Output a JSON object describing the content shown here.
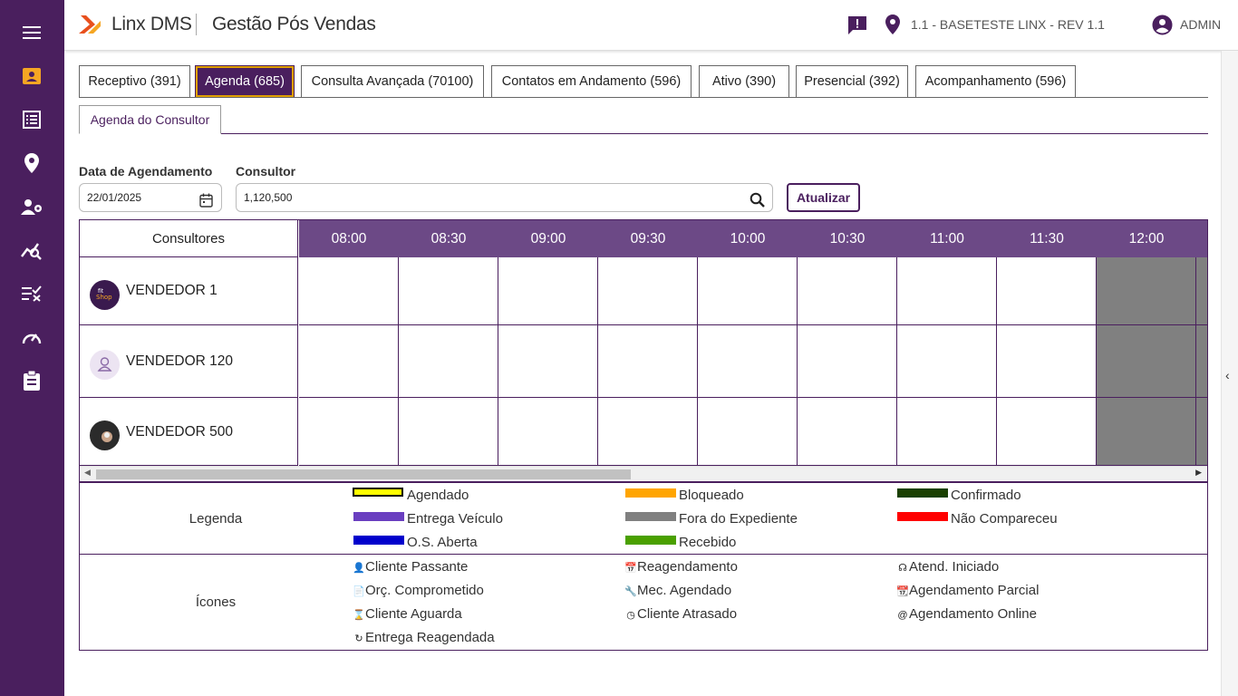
{
  "app": {
    "brand": "Linx DMS",
    "module": "Gestão Pós Vendas"
  },
  "header": {
    "company": "1.1 - BASETESTE LINX - REV 1.1",
    "user": "ADMIN"
  },
  "sidebar": {
    "icons": [
      "menu-icon",
      "contacts-icon",
      "list-icon",
      "location-icon",
      "users-gear-icon",
      "analytics-icon",
      "checklist-icon",
      "gauge-icon",
      "clipboard-icon"
    ]
  },
  "tabs": [
    {
      "label": "Receptivo (391)"
    },
    {
      "label": "Agenda (685)"
    },
    {
      "label": "Consulta Avançada (70100)"
    },
    {
      "label": "Contatos em Andamento (596)"
    },
    {
      "label": "Ativo (390)"
    },
    {
      "label": "Presencial (392)"
    },
    {
      "label": "Acompanhamento (596)"
    }
  ],
  "subtab": {
    "label": "Agenda do Consultor"
  },
  "filters": {
    "date_label": "Data de Agendamento",
    "date_value": "22/01/2025",
    "consultor_label": "Consultor",
    "consultor_value": "1,120,500",
    "refresh_label": "Atualizar"
  },
  "schedule": {
    "first_header": "Consultores",
    "times": [
      "08:00",
      "08:30",
      "09:00",
      "09:30",
      "10:00",
      "10:30",
      "11:00",
      "11:30",
      "12:00"
    ],
    "rows": [
      {
        "name": "VENDEDOR 1"
      },
      {
        "name": "VENDEDOR 120"
      },
      {
        "name": "VENDEDOR 500"
      }
    ]
  },
  "legend": {
    "title": "Legenda",
    "items": [
      {
        "label": "Agendado",
        "color": "#ffff00"
      },
      {
        "label": "Bloqueado",
        "color": "#ffa500"
      },
      {
        "label": "Confirmado",
        "color": "#1a4000"
      },
      {
        "label": "Entrega Veículo",
        "color": "#6a3fc0"
      },
      {
        "label": "Fora do Expediente",
        "color": "#808080"
      },
      {
        "label": "Não Compareceu",
        "color": "#ff0000"
      },
      {
        "label": "O.S. Aberta",
        "color": "#0000cc"
      },
      {
        "label": "Recebido",
        "color": "#4aa000"
      }
    ]
  },
  "icons_section": {
    "title": "Ícones",
    "items": [
      {
        "label": "Cliente Passante",
        "icon": "person-icon"
      },
      {
        "label": "Reagendamento",
        "icon": "calendar-icon"
      },
      {
        "label": "Atend. Iniciado",
        "icon": "headset-icon"
      },
      {
        "label": "Orç. Comprometido",
        "icon": "document-icon"
      },
      {
        "label": "Mec. Agendado",
        "icon": "wrench-icon"
      },
      {
        "label": "Agendamento Parcial",
        "icon": "calendar-partial-icon"
      },
      {
        "label": "Cliente Aguarda",
        "icon": "hourglass-icon"
      },
      {
        "label": "Cliente Atrasado",
        "icon": "clock-icon"
      },
      {
        "label": "Agendamento Online",
        "icon": "at-icon"
      },
      {
        "label": "Entrega Reagendada",
        "icon": "refresh-icon"
      }
    ]
  }
}
